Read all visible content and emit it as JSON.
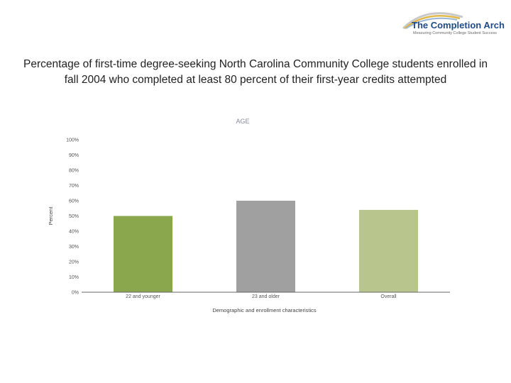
{
  "logo": {
    "brand": "The Completion Arch",
    "tagline": "Measuring Community College Student Success"
  },
  "slide_title": "Percentage of first-time degree-seeking North Carolina Community College students enrolled in fall 2004 who completed at least 80 percent of their first-year credits attempted",
  "chart_data": {
    "type": "bar",
    "title": "AGE",
    "xlabel": "Demographic and enrollment characteristics",
    "ylabel": "Percent",
    "categories": [
      "22 and younger",
      "23 and older",
      "Overall"
    ],
    "values": [
      50,
      60,
      54
    ],
    "ylim": [
      0,
      100
    ],
    "yticks": [
      "0%",
      "10%",
      "20%",
      "30%",
      "40%",
      "50%",
      "60%",
      "70%",
      "80%",
      "90%",
      "100%"
    ],
    "colors": [
      "#8aa74e",
      "#a0a0a0",
      "#b8c68e"
    ],
    "grid": false
  }
}
